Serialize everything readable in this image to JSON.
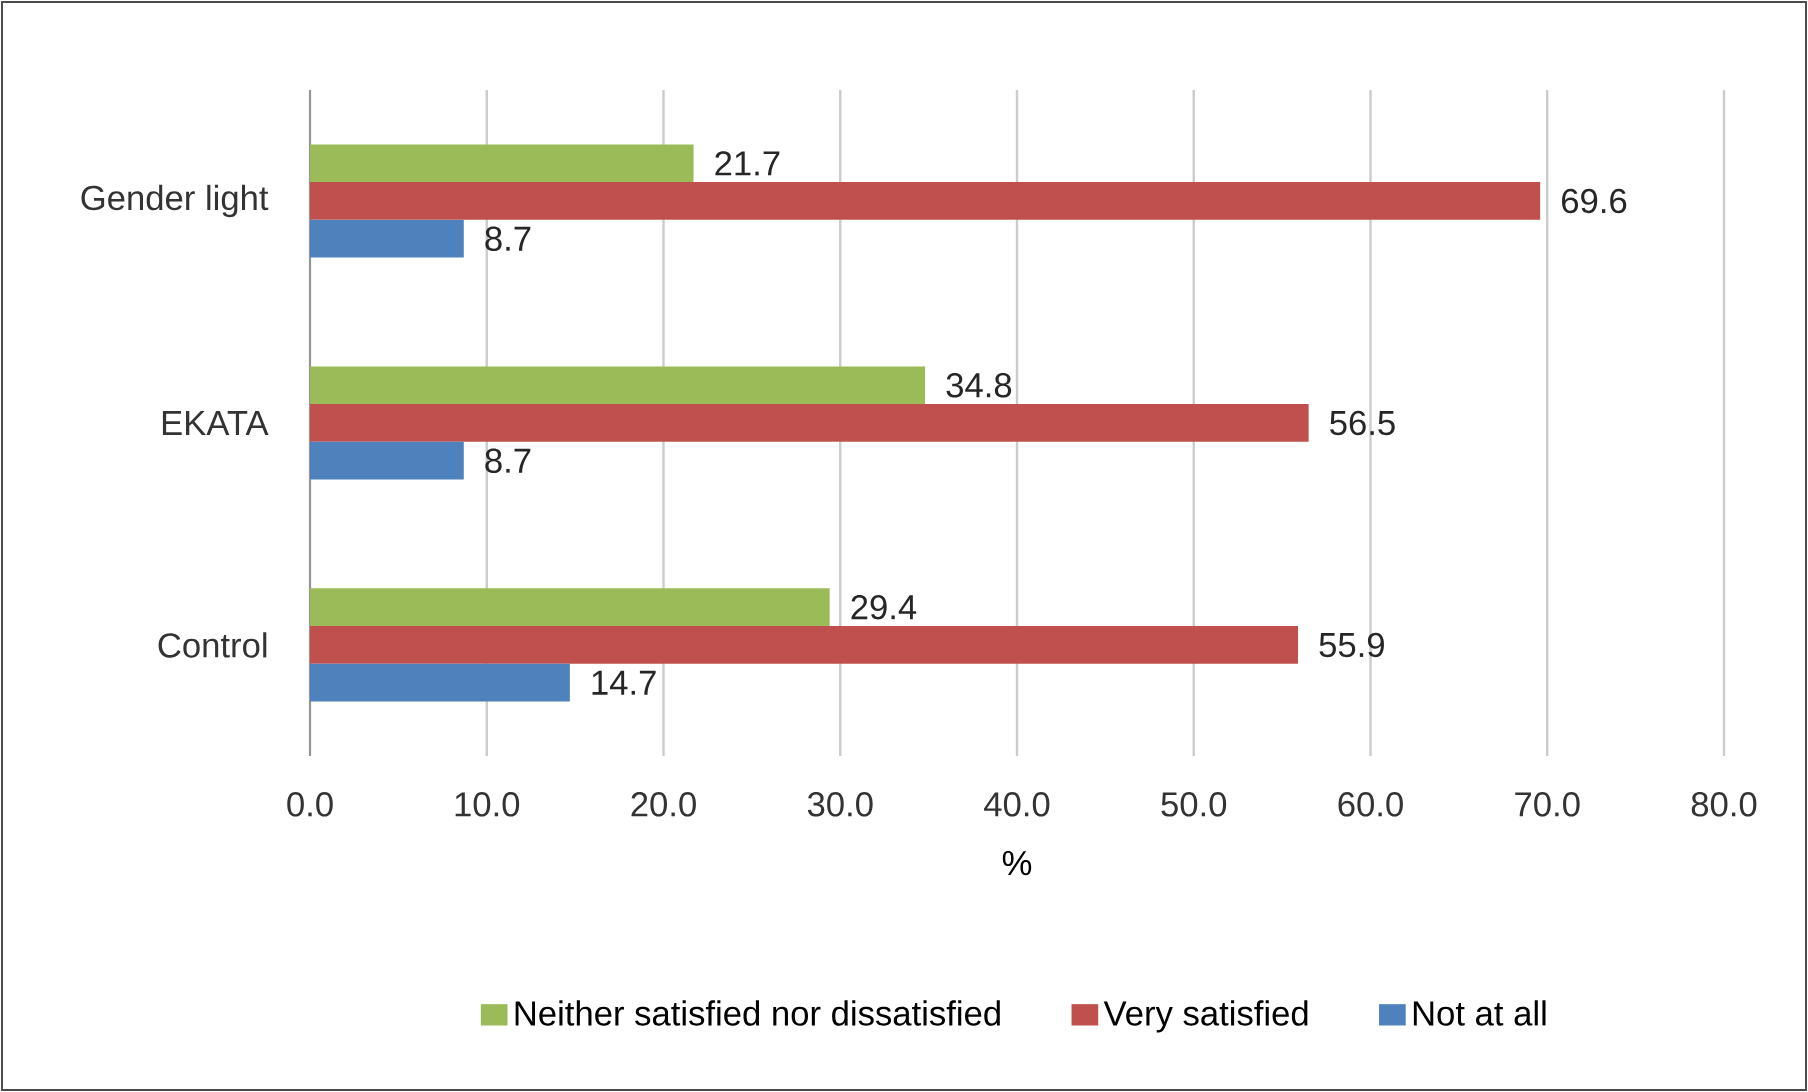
{
  "chart_data": {
    "type": "bar",
    "orientation": "horizontal",
    "xlabel": "%",
    "categories": [
      "Gender light",
      "EKATA",
      "Control"
    ],
    "series": [
      {
        "name": "Neither satisfied nor dissatisfied",
        "color": "#9bbb59",
        "values": [
          21.7,
          34.8,
          29.4
        ]
      },
      {
        "name": "Very satisfied",
        "color": "#c0504d",
        "values": [
          69.6,
          56.5,
          55.9
        ]
      },
      {
        "name": "Not at all",
        "color": "#4f81bd",
        "values": [
          8.7,
          8.7,
          14.7
        ]
      }
    ],
    "xlim": [
      0,
      80
    ],
    "xticks": [
      {
        "value": 0,
        "label": "0.0"
      },
      {
        "value": 10,
        "label": "10.0"
      },
      {
        "value": 20,
        "label": "20.0"
      },
      {
        "value": 30,
        "label": "30.0"
      },
      {
        "value": 40,
        "label": "40.0"
      },
      {
        "value": 50,
        "label": "50.0"
      },
      {
        "value": 60,
        "label": "60.0"
      },
      {
        "value": 70,
        "label": "70.0"
      },
      {
        "value": 80,
        "label": "80.0"
      }
    ],
    "grid": "x",
    "legend": "bottom",
    "data_labels": true
  }
}
